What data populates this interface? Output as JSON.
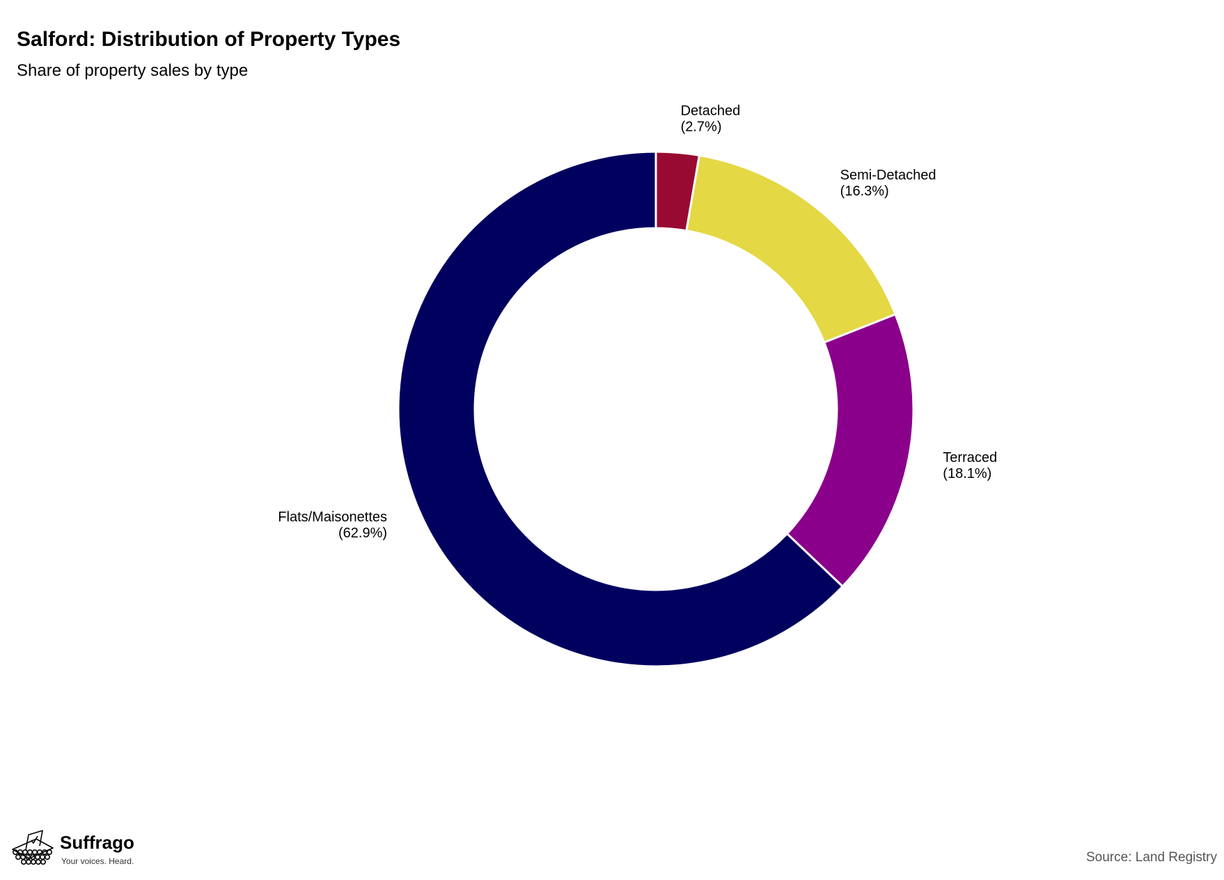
{
  "brand": {
    "name": "Suffrago",
    "tagline": "Your voices. Heard."
  },
  "source": "Source: Land Registry",
  "chart_data": {
    "type": "pie",
    "variant": "donut",
    "title": "Salford: Distribution of Property Types",
    "subtitle": "Share of property sales by type",
    "slices": [
      {
        "label": "Detached",
        "value": 2.7,
        "display": "(2.7%)",
        "color": "#990a32"
      },
      {
        "label": "Semi-Detached",
        "value": 16.3,
        "display": "(16.3%)",
        "color": "#e4d844"
      },
      {
        "label": "Terraced",
        "value": 18.1,
        "display": "(18.1%)",
        "color": "#8b008b"
      },
      {
        "label": "Flats/Maisonettes",
        "value": 62.9,
        "display": "(62.9%)",
        "color": "#00005f"
      }
    ],
    "start": "top",
    "direction": "clockwise",
    "legend": "none"
  }
}
